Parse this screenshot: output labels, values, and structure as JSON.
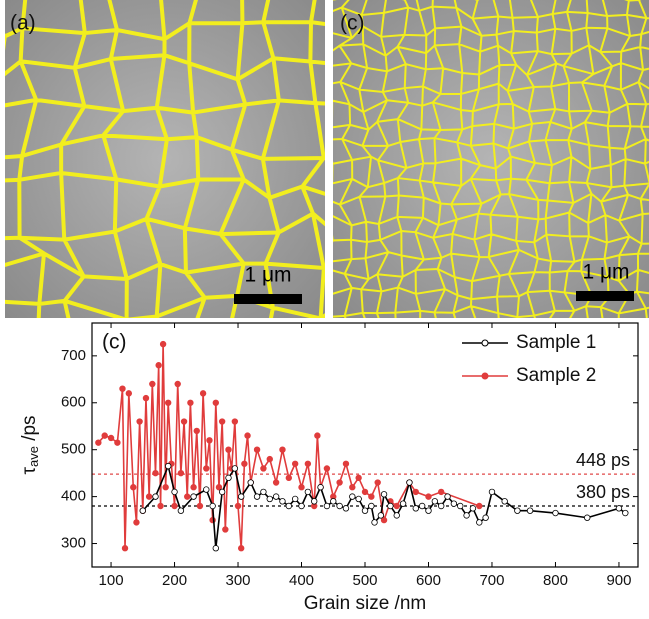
{
  "panels": [
    {
      "label": "(a)",
      "scale_bar": "1 μm"
    },
    {
      "label": "(c)",
      "scale_bar": "1 μm"
    }
  ],
  "chart_data": {
    "type": "line",
    "panel_label": "(c)",
    "xlabel": "Grain size /nm",
    "ylabel": {
      "symbol": "τ",
      "subscript": "ave",
      "unit": " /ps"
    },
    "xlim": [
      70,
      930
    ],
    "ylim": [
      250,
      770
    ],
    "xticks": [
      100,
      200,
      300,
      400,
      500,
      600,
      700,
      800,
      900
    ],
    "yticks": [
      300,
      400,
      500,
      600,
      700
    ],
    "legend": "upper right",
    "reference_lines": [
      {
        "value": 448,
        "label": "448 ps",
        "color": "#e04848"
      },
      {
        "value": 380,
        "label": "380 ps",
        "color": "#000000"
      }
    ],
    "series": [
      {
        "name": "Sample 1",
        "color": "#000000",
        "marker": "open",
        "x": [
          150,
          170,
          190,
          200,
          210,
          230,
          250,
          260,
          265,
          275,
          285,
          295,
          305,
          320,
          330,
          340,
          350,
          360,
          370,
          380,
          390,
          400,
          410,
          420,
          430,
          440,
          450,
          460,
          470,
          480,
          490,
          500,
          510,
          515,
          525,
          530,
          540,
          550,
          560,
          570,
          580,
          590,
          600,
          610,
          620,
          630,
          640,
          650,
          660,
          670,
          680,
          690,
          700,
          720,
          740,
          760,
          800,
          850,
          900,
          910
        ],
        "values": [
          370,
          400,
          465,
          410,
          370,
          400,
          415,
          380,
          290,
          410,
          440,
          460,
          400,
          430,
          400,
          410,
          395,
          400,
          390,
          380,
          395,
          380,
          410,
          390,
          420,
          380,
          390,
          380,
          375,
          400,
          395,
          370,
          380,
          345,
          360,
          405,
          380,
          360,
          385,
          430,
          375,
          380,
          370,
          390,
          380,
          400,
          385,
          380,
          360,
          375,
          345,
          355,
          410,
          390,
          370,
          370,
          365,
          355,
          375,
          365
        ]
      },
      {
        "name": "Sample 2",
        "color": "#e03c3c",
        "marker": "filled",
        "x": [
          80,
          90,
          100,
          110,
          118,
          122,
          128,
          135,
          140,
          145,
          150,
          155,
          160,
          165,
          170,
          175,
          178,
          182,
          186,
          190,
          195,
          200,
          205,
          210,
          215,
          220,
          225,
          230,
          235,
          240,
          245,
          250,
          255,
          260,
          265,
          270,
          275,
          280,
          285,
          290,
          295,
          300,
          305,
          310,
          315,
          320,
          330,
          340,
          350,
          360,
          370,
          380,
          390,
          400,
          410,
          420,
          425,
          430,
          440,
          450,
          460,
          470,
          480,
          490,
          500,
          510,
          520,
          530,
          540,
          550,
          570,
          580,
          600,
          620,
          680
        ],
        "values": [
          515,
          530,
          525,
          515,
          630,
          290,
          620,
          420,
          345,
          560,
          370,
          610,
          400,
          640,
          450,
          680,
          380,
          725,
          420,
          600,
          470,
          380,
          640,
          450,
          560,
          400,
          600,
          420,
          540,
          380,
          620,
          460,
          520,
          350,
          600,
          420,
          560,
          330,
          500,
          460,
          560,
          380,
          290,
          470,
          530,
          430,
          500,
          460,
          480,
          430,
          500,
          440,
          470,
          420,
          470,
          380,
          530,
          420,
          460,
          400,
          430,
          470,
          420,
          440,
          410,
          400,
          430,
          350,
          390,
          380,
          430,
          410,
          400,
          410,
          380
        ]
      }
    ]
  }
}
